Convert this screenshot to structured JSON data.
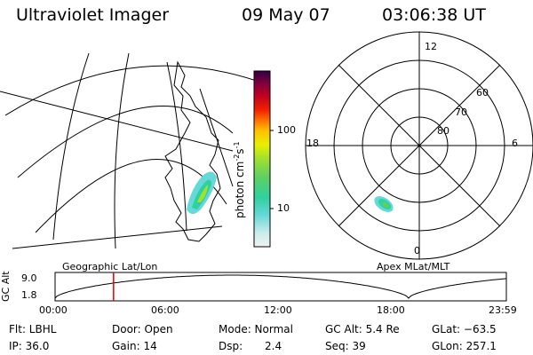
{
  "header": {
    "title": "Ultraviolet Imager",
    "date": "09 May 07",
    "time": "03:06:38 UT"
  },
  "colorbar": {
    "label": "photon cm",
    "label_sup1": "-2",
    "label_mid": "s",
    "label_sup2": "-1",
    "ticks": [
      "100",
      "10"
    ],
    "tick_values": [
      100,
      10
    ],
    "log_range": [
      2.7,
      600
    ],
    "colors": [
      "#f2f2f2",
      "#c8ecec",
      "#66d8d8",
      "#30d0a0",
      "#60d060",
      "#a0e030",
      "#e8f000",
      "#ffc000",
      "#ff7000",
      "#f02000",
      "#c00020",
      "#800040",
      "#300040"
    ]
  },
  "polar": {
    "mlt_labels": [
      "12",
      "18",
      "6",
      "0"
    ],
    "mlat_labels": [
      "60",
      "70",
      "80"
    ]
  },
  "altitude_panel": {
    "ylabel": "GC Alt",
    "yticks": [
      "9.0",
      "1.8"
    ],
    "left_caption": "Geographic Lat/Lon",
    "right_caption": "Apex MLat/MLT",
    "xticks": [
      "00:00",
      "06:00",
      "12:00",
      "18:00",
      "23:59"
    ],
    "marker_time_hours": 3.11,
    "minima_hours": [
      0.0,
      18.8
    ],
    "apogee_hours": 9.4,
    "yrange": [
      1.8,
      9.0
    ],
    "marker_color": "#e00000"
  },
  "footer": {
    "flt": "Flt: LBHL",
    "door": "Door: Open",
    "mode": "Mode: Normal",
    "gcalt": "GC Alt: 5.4 Re",
    "glat": "GLat: −63.5",
    "ip": "IP: 36.0",
    "gain": "Gain: 14",
    "dsp_label": "Dsp:",
    "dsp_value": "2.4",
    "seq": "Seq: 39",
    "glon": "GLon: 257.1"
  }
}
